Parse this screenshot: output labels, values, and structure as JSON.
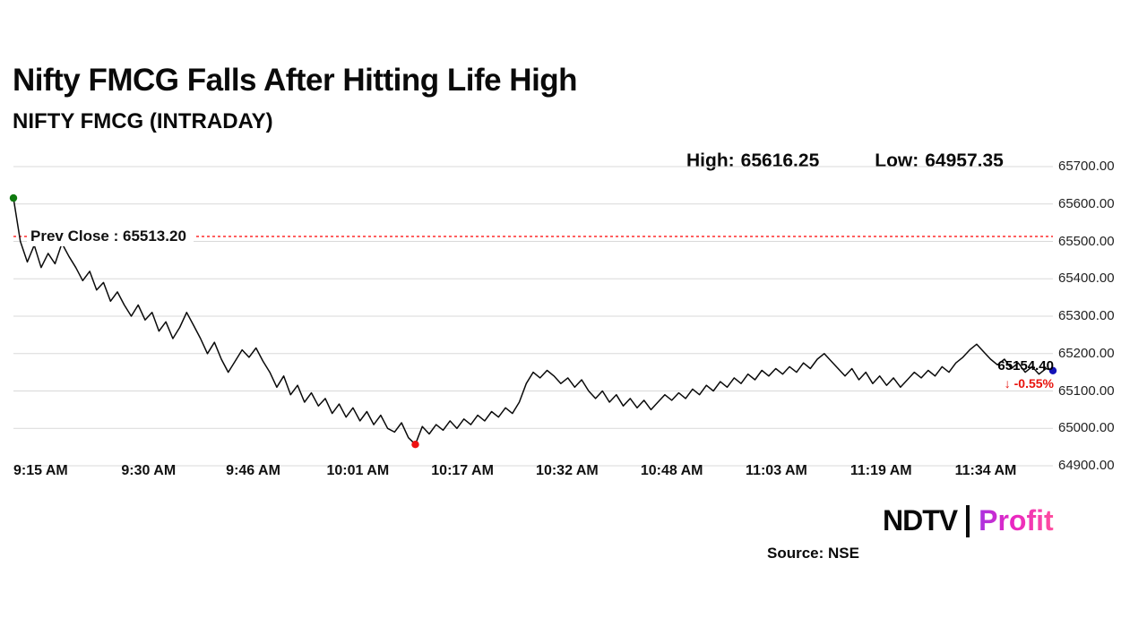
{
  "header": {
    "title": "Nifty FMCG Falls After Hitting Life High",
    "subtitle": "NIFTY FMCG (INTRADAY)",
    "high_label": "High:",
    "high_value": "65616.25",
    "low_label": "Low:",
    "low_value": "64957.35"
  },
  "chart_data": {
    "type": "line",
    "title": "NIFTY FMCG (INTRADAY)",
    "x_ticks": [
      "9:15 AM",
      "9:30 AM",
      "9:46 AM",
      "10:01 AM",
      "10:17 AM",
      "10:32 AM",
      "10:48 AM",
      "11:03 AM",
      "11:19 AM",
      "11:34 AM"
    ],
    "y_ticks": [
      "65700.00",
      "65600.00",
      "65500.00",
      "65400.00",
      "65300.00",
      "65200.00",
      "65100.00",
      "65000.00",
      "64900.00"
    ],
    "ylim": [
      64900,
      65700
    ],
    "grid": true,
    "high": 65616.25,
    "low": 64957.35,
    "prev_close": {
      "label": "Prev Close : 65513.20",
      "value": 65513.2
    },
    "last": {
      "label": "65154.40",
      "value": 65154.4,
      "change": "↓ -0.55%"
    },
    "colors": {
      "line": "#0a0a0a",
      "grid": "#d9d9d9",
      "prev_close_line": "#ff0000",
      "change_text": "#e8120c",
      "marker_start": "#0f7a0f",
      "marker_low": "#ee1111",
      "marker_end": "#1414b8"
    },
    "values": [
      65616,
      65500,
      65445,
      65490,
      65430,
      65468,
      65440,
      65495,
      65460,
      65430,
      65395,
      65420,
      65370,
      65390,
      65340,
      65365,
      65330,
      65300,
      65330,
      65290,
      65310,
      65260,
      65285,
      65240,
      65270,
      65310,
      65275,
      65240,
      65200,
      65230,
      65185,
      65150,
      65180,
      65210,
      65190,
      65215,
      65180,
      65150,
      65110,
      65140,
      65090,
      65115,
      65070,
      65095,
      65060,
      65080,
      65040,
      65065,
      65030,
      65055,
      65020,
      65045,
      65010,
      65035,
      65000,
      64990,
      65015,
      64975,
      64957,
      65005,
      64985,
      65010,
      64995,
      65020,
      65000,
      65025,
      65010,
      65035,
      65020,
      65045,
      65030,
      65055,
      65040,
      65070,
      65120,
      65150,
      65135,
      65155,
      65140,
      65120,
      65135,
      65110,
      65130,
      65100,
      65080,
      65100,
      65070,
      65090,
      65060,
      65080,
      65055,
      65075,
      65050,
      65070,
      65090,
      65075,
      65095,
      65080,
      65105,
      65090,
      65115,
      65100,
      65125,
      65110,
      65135,
      65120,
      65145,
      65130,
      65155,
      65140,
      65160,
      65145,
      65165,
      65150,
      65175,
      65160,
      65185,
      65200,
      65180,
      65160,
      65140,
      65160,
      65130,
      65150,
      65120,
      65140,
      65115,
      65135,
      65110,
      65130,
      65150,
      65135,
      65155,
      65140,
      65165,
      65150,
      65175,
      65190,
      65210,
      65225,
      65205,
      65185,
      65170,
      65185,
      65160,
      65175,
      65150,
      65165,
      65145,
      65160,
      65154.4
    ]
  },
  "footer": {
    "logo_ndtv": "NDTV",
    "logo_sep": "|",
    "logo_profit": "Profit",
    "source": "Source: NSE"
  }
}
